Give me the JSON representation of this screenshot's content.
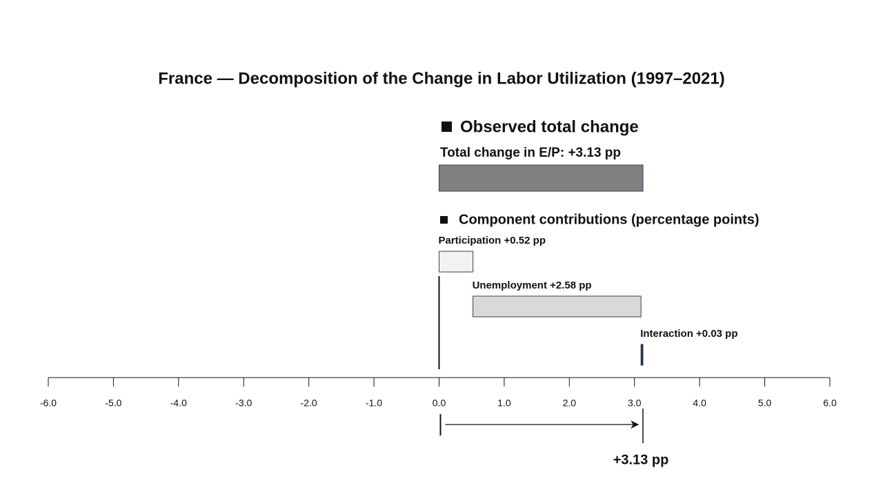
{
  "chart_data": {
    "type": "bar",
    "title": "France — Decomposition of the Change in Labor Utilization (1997–2021)",
    "total": {
      "heading": "Observed total change",
      "label": "Total change in E/P:",
      "value": 3.13,
      "value_label": "+3.13 pp",
      "color": "#808080"
    },
    "components": {
      "heading": "Component contributions (percentage points)",
      "categories": [
        "Participation",
        "Unemployment",
        "Interaction"
      ],
      "values": [
        0.52,
        2.58,
        0.03
      ],
      "value_labels": [
        "+0.52 pp",
        "+2.58 pp",
        "+0.03 pp"
      ],
      "colors": [
        "#f2f2f2",
        "#d9d9d9",
        "#1f2a44"
      ]
    },
    "xlim": [
      -6,
      6
    ],
    "xticks": [
      {
        "value": -6,
        "label": "-6.0"
      },
      {
        "value": -5,
        "label": "-5.0"
      },
      {
        "value": -4,
        "label": "-4.0"
      },
      {
        "value": -3,
        "label": "-3.0"
      },
      {
        "value": -2,
        "label": "-2.0"
      },
      {
        "value": -1,
        "label": "-1.0"
      },
      {
        "value": 0,
        "label": "0.0"
      },
      {
        "value": 1,
        "label": "1.0"
      },
      {
        "value": 2,
        "label": "2.0"
      },
      {
        "value": 3,
        "label": "3.0"
      },
      {
        "value": 4,
        "label": "4.0"
      },
      {
        "value": 5,
        "label": "5.0"
      },
      {
        "value": 6,
        "label": "6.0"
      }
    ]
  }
}
